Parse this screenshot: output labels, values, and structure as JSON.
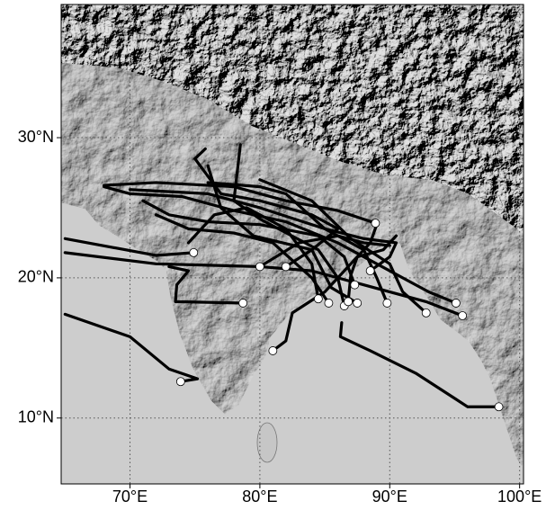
{
  "chart_data": {
    "type": "track-map",
    "xlim": [
      64.7,
      100.3
    ],
    "ylim": [
      5.3,
      39.5
    ],
    "xticks": [
      {
        "value": 70,
        "label": "70°E"
      },
      {
        "value": 80,
        "label": "80°E"
      },
      {
        "value": 90,
        "label": "90°E"
      },
      {
        "value": 100,
        "label": "100°E"
      }
    ],
    "yticks": [
      {
        "value": 10,
        "label": "10°N"
      },
      {
        "value": 20,
        "label": "20°N"
      },
      {
        "value": 30,
        "label": "30°N"
      }
    ],
    "grid": true,
    "track_color": "#000000",
    "tracks": [
      {
        "lon": [
          98.4,
          96.0,
          92.0,
          88.5,
          86.2,
          86.3
        ],
        "lat": [
          10.8,
          10.8,
          13.2,
          14.8,
          15.8,
          16.8
        ]
      },
      {
        "lon": [
          73.9,
          75.2,
          73.0,
          70.0,
          65.0
        ],
        "lat": [
          12.6,
          12.8,
          13.5,
          15.8,
          17.4
        ]
      },
      {
        "lon": [
          95.6,
          92.8,
          88.0,
          84.0,
          80.0,
          72.0,
          65.0
        ],
        "lat": [
          17.3,
          18.3,
          19.5,
          20.5,
          20.8,
          21.0,
          21.8
        ]
      },
      {
        "lon": [
          78.7,
          73.5,
          73.6,
          74.5,
          73.0
        ],
        "lat": [
          18.2,
          18.3,
          19.5,
          20.5,
          20.8
        ]
      },
      {
        "lon": [
          74.9,
          72.0,
          65.0
        ],
        "lat": [
          21.8,
          21.6,
          22.8
        ]
      },
      {
        "lon": [
          80.0,
          83.0,
          86.0,
          88.0,
          90.0
        ],
        "lat": [
          20.8,
          22.5,
          23.0,
          22.5,
          22.3
        ]
      },
      {
        "lon": [
          81.0,
          82.0,
          82.5,
          85.0,
          87.0,
          88.5,
          89.0
        ],
        "lat": [
          14.8,
          15.5,
          17.5,
          19.0,
          21.0,
          22.5,
          23.8
        ]
      },
      {
        "lon": [
          95.1,
          93.0,
          89.0,
          86.0,
          82.0,
          78.0,
          74.0,
          70.0,
          68.0
        ],
        "lat": [
          18.2,
          19.0,
          21.0,
          22.5,
          24.0,
          24.8,
          25.8,
          26.0,
          26.5
        ]
      },
      {
        "lon": [
          89.8,
          89.0,
          88.0,
          85.0,
          80.0,
          76.0,
          70.0
        ],
        "lat": [
          18.2,
          20.0,
          22.0,
          23.5,
          25.0,
          26.0,
          26.3
        ]
      },
      {
        "lon": [
          82.0,
          84.0,
          86.0,
          84.0,
          80.0,
          77.0,
          75.0,
          75.8
        ],
        "lat": [
          20.8,
          22.0,
          23.5,
          24.5,
          25.5,
          26.0,
          28.5,
          29.2
        ]
      },
      {
        "lon": [
          86.5,
          86.0,
          84.5,
          80.0,
          78.0,
          78.5
        ],
        "lat": [
          18.0,
          20.0,
          22.0,
          24.2,
          25.5,
          29.5
        ]
      },
      {
        "lon": [
          88.9,
          86.0,
          82.0,
          78.0,
          72.0,
          68.0
        ],
        "lat": [
          23.9,
          24.8,
          25.5,
          26.5,
          26.8,
          26.6
        ]
      },
      {
        "lon": [
          87.3,
          86.5,
          84.5,
          80.0,
          76.0,
          73.0,
          71.0
        ],
        "lat": [
          19.5,
          21.5,
          23.0,
          23.8,
          24.0,
          24.5,
          25.5
        ]
      },
      {
        "lon": [
          85.3,
          84.0,
          81.0,
          78.0,
          74.5,
          72.0
        ],
        "lat": [
          18.2,
          20.0,
          22.5,
          23.2,
          23.5,
          24.5
        ]
      },
      {
        "lon": [
          88.5,
          90.0,
          90.5,
          88.0,
          85.0,
          82.0,
          80.0,
          76.0
        ],
        "lat": [
          20.5,
          21.5,
          22.5,
          22.8,
          23.5,
          26.0,
          26.5,
          26.8
        ]
      },
      {
        "lon": [
          84.5,
          84.0,
          82.0,
          79.0,
          76.5,
          74.5
        ],
        "lat": [
          18.5,
          21.0,
          23.5,
          25.0,
          24.5,
          22.5
        ]
      },
      {
        "lon": [
          87.5,
          85.5,
          84.0,
          79.5,
          77.0,
          76.0
        ],
        "lat": [
          18.2,
          19.3,
          22.0,
          23.0,
          25.0,
          28.0
        ]
      },
      {
        "lon": [
          92.8,
          91.0,
          90.0,
          87.0,
          84.0,
          80.0
        ],
        "lat": [
          17.5,
          19.0,
          21.0,
          22.8,
          25.5,
          27.0
        ]
      },
      {
        "lon": [
          86.8,
          87.0,
          87.5,
          89.5,
          90.5
        ],
        "lat": [
          18.3,
          20.2,
          21.5,
          22.0,
          23.0
        ]
      }
    ]
  }
}
